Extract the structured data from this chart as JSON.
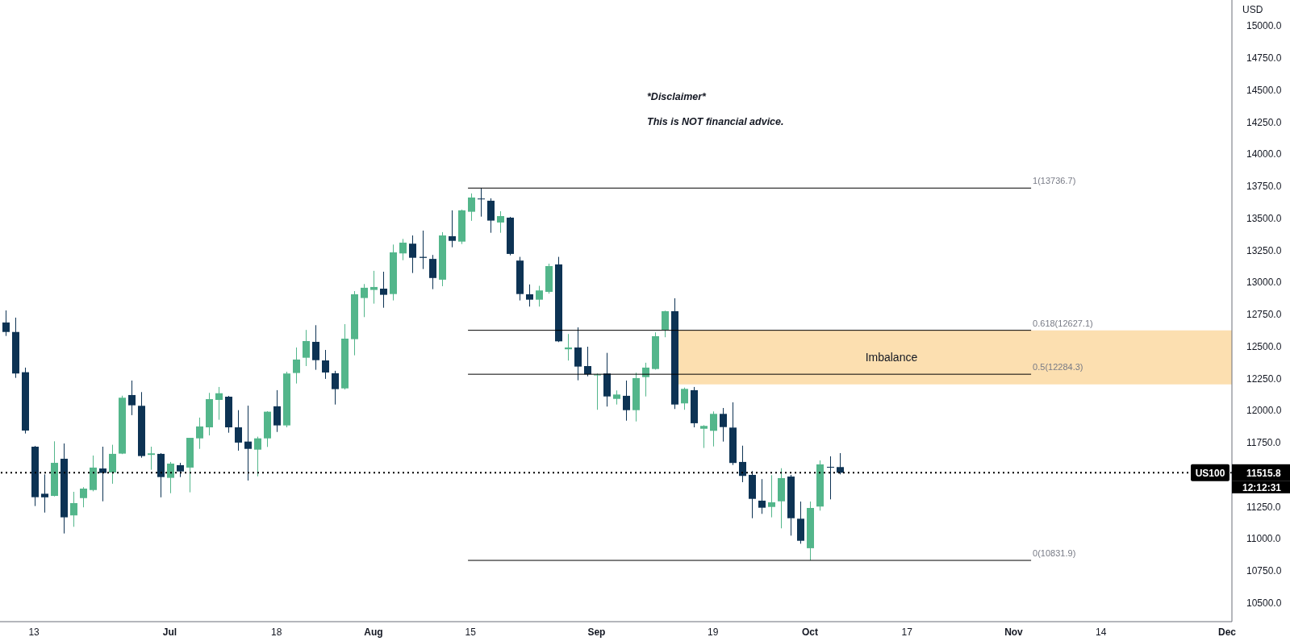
{
  "chart_data": {
    "type": "candlestick",
    "categories": [
      null,
      null,
      null,
      "13",
      null,
      null,
      null,
      null,
      null,
      null,
      null,
      null,
      null,
      null,
      null,
      null,
      null,
      "Jul",
      null,
      null,
      null,
      null,
      null,
      null,
      null,
      null,
      null,
      null,
      "18",
      null,
      null,
      null,
      null,
      null,
      null,
      null,
      null,
      null,
      "Aug",
      null,
      null,
      null,
      null,
      null,
      null,
      null,
      null,
      null,
      "15",
      null,
      null,
      null,
      null,
      null,
      null,
      null,
      null,
      null,
      null,
      null,
      null,
      "Sep",
      null,
      null,
      null,
      null,
      null,
      null,
      null,
      null,
      null,
      null,
      null,
      "19",
      null,
      null,
      null,
      null,
      null,
      null,
      null,
      null,
      null,
      "Oct",
      null,
      null,
      null,
      null,
      null,
      null,
      null,
      null,
      null,
      "17",
      null,
      null,
      null,
      null,
      null,
      null,
      null,
      null,
      null,
      null,
      "Nov",
      null,
      null,
      null,
      null,
      null,
      null,
      null,
      null,
      "14",
      null,
      null,
      null,
      null,
      null,
      null,
      null,
      null,
      null,
      null,
      null,
      null,
      "Dec"
    ],
    "ohlc": [
      [
        12688,
        12782,
        12583,
        12614
      ],
      [
        12614,
        12726,
        12256,
        12290
      ],
      [
        12300,
        12336,
        11822,
        11845
      ],
      [
        11719,
        11725,
        11256,
        11325
      ],
      [
        11352,
        11503,
        11205,
        11324
      ],
      [
        11335,
        11761,
        11331,
        11593
      ],
      [
        11625,
        11744,
        11042,
        11168
      ],
      [
        11183,
        11367,
        11094,
        11279
      ],
      [
        11318,
        11403,
        11246,
        11392
      ],
      [
        11381,
        11650,
        11371,
        11556
      ],
      [
        11549,
        11719,
        11293,
        11514
      ],
      [
        11518,
        11734,
        11430,
        11663
      ],
      [
        11665,
        12117,
        11661,
        12101
      ],
      [
        12122,
        12235,
        11965,
        12042
      ],
      [
        12038,
        12145,
        11633,
        11646
      ],
      [
        11655,
        11719,
        11539,
        11667
      ],
      [
        11663,
        11669,
        11324,
        11482
      ],
      [
        11476,
        11600,
        11356,
        11587
      ],
      [
        11575,
        11593,
        11482,
        11526
      ],
      [
        11556,
        11788,
        11363,
        11788
      ],
      [
        11784,
        11946,
        11702,
        11877
      ],
      [
        11870,
        12139,
        11807,
        12090
      ],
      [
        12084,
        12185,
        11929,
        12136
      ],
      [
        12109,
        12115,
        11828,
        11870
      ],
      [
        11870,
        12004,
        11688,
        11751
      ],
      [
        11759,
        12039,
        11455,
        11702
      ],
      [
        11696,
        11797,
        11488,
        11784
      ],
      [
        11784,
        11996,
        11717,
        11992
      ],
      [
        12034,
        12160,
        11834,
        11885
      ],
      [
        11885,
        12304,
        11870,
        12290
      ],
      [
        12294,
        12493,
        12212,
        12399
      ],
      [
        12413,
        12630,
        12348,
        12543
      ],
      [
        12537,
        12667,
        12319,
        12394
      ],
      [
        12392,
        12474,
        12248,
        12298
      ],
      [
        12292,
        12311,
        12048,
        12168
      ],
      [
        12174,
        12675,
        12165,
        12562
      ],
      [
        12558,
        12933,
        12432,
        12908
      ],
      [
        12879,
        12988,
        12730,
        12959
      ],
      [
        12942,
        13091,
        12835,
        12965
      ],
      [
        12952,
        13084,
        12803,
        12904
      ],
      [
        12910,
        13296,
        12860,
        13235
      ],
      [
        13227,
        13340,
        13174,
        13311
      ],
      [
        13303,
        13367,
        13074,
        13193
      ],
      [
        13200,
        13405,
        13105,
        13192
      ],
      [
        13184,
        13215,
        12948,
        13035
      ],
      [
        13022,
        13393,
        12971,
        13367
      ],
      [
        13361,
        13563,
        13275,
        13325
      ],
      [
        13319,
        13569,
        13300,
        13563
      ],
      [
        13552,
        13695,
        13481,
        13663
      ],
      [
        13655,
        13736.7,
        13514,
        13649
      ],
      [
        13638,
        13657,
        13388,
        13483
      ],
      [
        13468,
        13556,
        13388,
        13518
      ],
      [
        13506,
        13512,
        13212,
        13223
      ],
      [
        13171,
        13200,
        12860,
        12910
      ],
      [
        12908,
        12985,
        12812,
        12866
      ],
      [
        12866,
        12974,
        12812,
        12938
      ],
      [
        12927,
        13147,
        12913,
        13128
      ],
      [
        13141,
        13200,
        12535,
        12541
      ],
      [
        12479,
        12598,
        12391,
        12493
      ],
      [
        12493,
        12650,
        12237,
        12344
      ],
      [
        12348,
        12499,
        12268,
        12284
      ],
      [
        12275,
        12290,
        12007,
        12282
      ],
      [
        12290,
        12451,
        12032,
        12111
      ],
      [
        12092,
        12158,
        12048,
        12126
      ],
      [
        12116,
        12235,
        11922,
        12004
      ],
      [
        12004,
        12296,
        11916,
        12254
      ],
      [
        12262,
        12374,
        12111,
        12336
      ],
      [
        12325,
        12611,
        12320,
        12581
      ],
      [
        12630,
        12780,
        12573,
        12776
      ],
      [
        12776,
        12877,
        12013,
        12048
      ],
      [
        12057,
        12180,
        12007,
        12170
      ],
      [
        12160,
        12185,
        11870,
        11902
      ],
      [
        11859,
        11887,
        11709,
        11881
      ],
      [
        11843,
        11994,
        11721,
        11975
      ],
      [
        11975,
        12021,
        11759,
        11872
      ],
      [
        11868,
        12065,
        11576,
        11592
      ],
      [
        11600,
        11727,
        11442,
        11491
      ],
      [
        11499,
        11529,
        11161,
        11312
      ],
      [
        11298,
        11466,
        11195,
        11243
      ],
      [
        11249,
        11497,
        11168,
        11285
      ],
      [
        11293,
        11551,
        11082,
        11474
      ],
      [
        11486,
        11499,
        11025,
        11161
      ],
      [
        11157,
        11291,
        10962,
        10985
      ],
      [
        10927,
        11291,
        10831.9,
        11241
      ],
      [
        11252,
        11612,
        11220,
        11581
      ],
      [
        11562,
        11644,
        11308,
        11558
      ],
      [
        11560,
        11669,
        11503,
        11515.8
      ],
      null,
      null,
      null,
      null,
      null,
      null,
      null,
      null,
      null,
      null,
      null,
      null,
      null,
      null,
      null,
      null,
      null,
      null,
      null,
      null,
      null,
      null,
      null,
      null,
      null,
      null,
      null,
      null,
      null,
      null,
      null,
      null,
      null,
      null,
      null,
      null,
      null,
      null,
      null,
      null
    ],
    "colors": [
      "#0d3354",
      "#0d3354",
      "#0d3354",
      "#0d3354",
      "#0d3354",
      "#53b68b",
      "#0d3354",
      "#53b68b",
      "#53b68b",
      "#53b68b",
      "#0d3354",
      "#53b68b",
      "#53b68b",
      "#0d3354",
      "#0d3354",
      "#53b68b",
      "#0d3354",
      "#53b68b",
      "#0d3354",
      "#53b68b",
      "#53b68b",
      "#53b68b",
      "#53b68b",
      "#0d3354",
      "#0d3354",
      "#0d3354",
      "#53b68b",
      "#53b68b",
      "#0d3354",
      "#53b68b",
      "#53b68b",
      "#53b68b",
      "#0d3354",
      "#0d3354",
      "#0d3354",
      "#53b68b",
      "#53b68b",
      "#53b68b",
      "#53b68b",
      "#0d3354",
      "#53b68b",
      "#53b68b",
      "#0d3354",
      "#0d3354",
      "#0d3354",
      "#53b68b",
      "#0d3354",
      "#53b68b",
      "#53b68b",
      "#0d3354",
      "#0d3354",
      "#53b68b",
      "#0d3354",
      "#0d3354",
      "#0d3354",
      "#53b68b",
      "#53b68b",
      "#0d3354",
      "#53b68b",
      "#0d3354",
      "#0d3354",
      "#53b68b",
      "#0d3354",
      "#53b68b",
      "#0d3354",
      "#53b68b",
      "#53b68b",
      "#53b68b",
      "#53b68b",
      "#0d3354",
      "#53b68b",
      "#0d3354",
      "#53b68b",
      "#53b68b",
      "#0d3354",
      "#0d3354",
      "#0d3354",
      "#0d3354",
      "#0d3354",
      "#53b68b",
      "#53b68b",
      "#0d3354",
      "#0d3354",
      "#53b68b",
      "#53b68b",
      "#0d3354",
      "#0d3354",
      null,
      null,
      null,
      null,
      null,
      null,
      null,
      null,
      null,
      null,
      null,
      null,
      null,
      null,
      null,
      null,
      null,
      null,
      null,
      null,
      null,
      null,
      null,
      null,
      null,
      null,
      null,
      null,
      null,
      null,
      null,
      null,
      null,
      null,
      null,
      null,
      null,
      null,
      null,
      null
    ],
    "ylabel": "USD",
    "ylim": [
      10354,
      15204
    ],
    "yticks": [
      {
        "value": 10500,
        "label": "10500.0"
      },
      {
        "value": 10750,
        "label": "10750.0"
      },
      {
        "value": 11000,
        "label": "11000.0"
      },
      {
        "value": 11250,
        "label": "11250.0"
      },
      {
        "value": 11515.8,
        "label": "11515.8"
      },
      {
        "value": 11750,
        "label": "11750.0"
      },
      {
        "value": 12000,
        "label": "12000.0"
      },
      {
        "value": 12250,
        "label": "12250.0"
      },
      {
        "value": 12500,
        "label": "12500.0"
      },
      {
        "value": 12750,
        "label": "12750.0"
      },
      {
        "value": 13000,
        "label": "13000.0"
      },
      {
        "value": 13250,
        "label": "13250.0"
      },
      {
        "value": 13500,
        "label": "13500.0"
      },
      {
        "value": 13750,
        "label": "13750.0"
      },
      {
        "value": 14000,
        "label": "14000.0"
      },
      {
        "value": 14250,
        "label": "14250.0"
      },
      {
        "value": 14500,
        "label": "14500.0"
      },
      {
        "value": 14750,
        "label": "14750.0"
      },
      {
        "value": 15000,
        "label": "15000.0"
      }
    ],
    "ref_lines": [
      {
        "axis": "y",
        "value": 13736.7,
        "label": "1(13736.7)",
        "color": "#000000",
        "line_style": "solid"
      },
      {
        "axis": "y",
        "value": 12627.1,
        "label": "0.618(12627.1)",
        "color": "#000000",
        "line_style": "solid"
      },
      {
        "axis": "y",
        "value": 12284.3,
        "label": "0.5(12284.3)",
        "color": "#000000",
        "line_style": "solid"
      },
      {
        "axis": "y",
        "value": 10831.9,
        "label": "0(10831.9)",
        "color": "#000000",
        "line_style": "solid"
      },
      {
        "axis": "y",
        "value": 11515.8,
        "label": "US100",
        "color": "#000000",
        "line_style": "dotted"
      }
    ],
    "bands": [
      {
        "axis": "y",
        "from": 12205,
        "to": 12627,
        "label": "Imbalance",
        "color": "#fcd9a2"
      }
    ],
    "annotations": [
      "*Disclaimer*",
      "This is NOT financial advice.",
      "12:12:31"
    ]
  }
}
